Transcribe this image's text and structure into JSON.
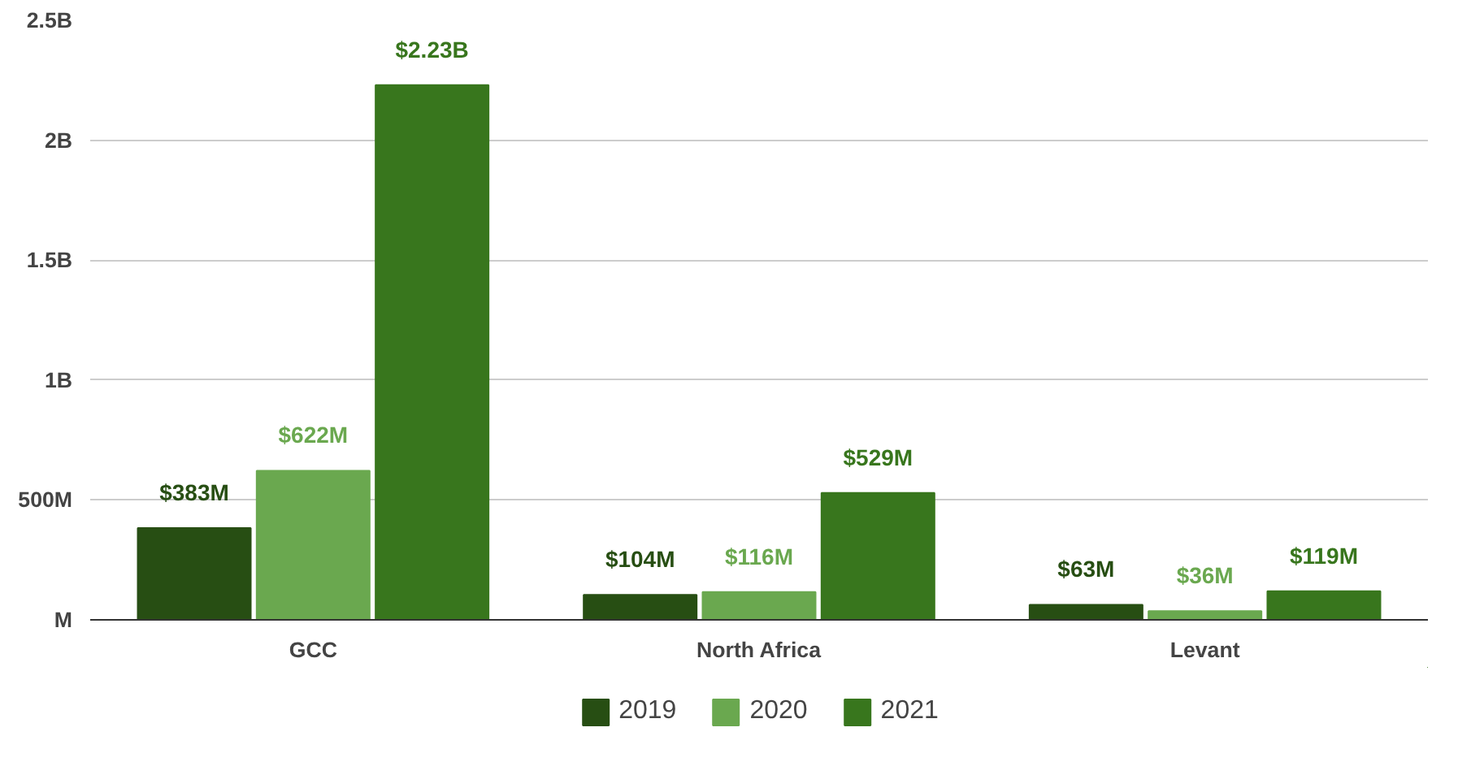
{
  "chart_data": {
    "type": "bar",
    "categories": [
      "GCC",
      "North Africa",
      "Levant"
    ],
    "series": [
      {
        "name": "2019",
        "color": "#274e13",
        "values": [
          383000000,
          104000000,
          63000000
        ],
        "value_labels": [
          "$383M",
          "$104M",
          "$63M"
        ]
      },
      {
        "name": "2020",
        "color": "#6aa84f",
        "values": [
          622000000,
          116000000,
          36000000
        ],
        "value_labels": [
          "$622M",
          "$116M",
          "$36M"
        ]
      },
      {
        "name": "2021",
        "color": "#38761d",
        "values": [
          2230000000,
          529000000,
          119000000
        ],
        "value_labels": [
          "$2.23B",
          "$529M",
          "$119M"
        ]
      }
    ],
    "ylim": [
      0,
      2500000000
    ],
    "yticks": [
      {
        "value": 0,
        "label": "M"
      },
      {
        "value": 500000000,
        "label": "500M"
      },
      {
        "value": 1000000000,
        "label": "1B"
      },
      {
        "value": 1500000000,
        "label": "1.5B"
      },
      {
        "value": 2000000000,
        "label": "2B"
      },
      {
        "value": 2500000000,
        "label": "2.5B"
      }
    ],
    "grid": "y",
    "legend": "bottom"
  }
}
